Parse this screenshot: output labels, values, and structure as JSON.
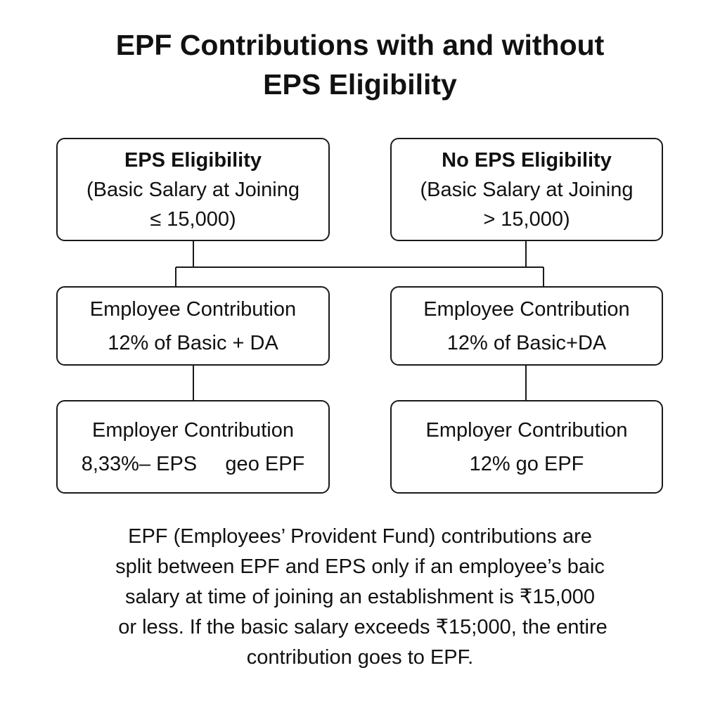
{
  "title": {
    "line1": "EPF Contributions with and without",
    "line2": "EPS Eligibility"
  },
  "left": {
    "eligibility": {
      "heading": "EPS Eligibility",
      "line1": "(Basic Salary at Joining",
      "line2": "≤ 15,000)"
    },
    "employee": {
      "heading": "Employee Contribution",
      "value": "12% of Basic + DA"
    },
    "employer": {
      "heading": "Employer Contribution",
      "value": "8,33%– EPS     geo EPF"
    }
  },
  "right": {
    "eligibility": {
      "heading": "No EPS Eligibility",
      "line1": "(Basic Salary at Joining",
      "line2": "> 15,000)"
    },
    "employee": {
      "heading": "Employee Contribution",
      "value": "12% of Basic+DA"
    },
    "employer": {
      "heading": "Employer Contribution",
      "value": "12% go EPF"
    }
  },
  "caption": {
    "line1": "EPF (Employees’ Provident Fund) contributions are",
    "line2": "split between EPF and EPS only if an employee’s baic",
    "line3": "salary at time of joining an establishment is ₹15,000",
    "line4": " or less. If the basic salary exceeds ₹15;000, the entire",
    "line5": "contribution goes to EPF."
  }
}
